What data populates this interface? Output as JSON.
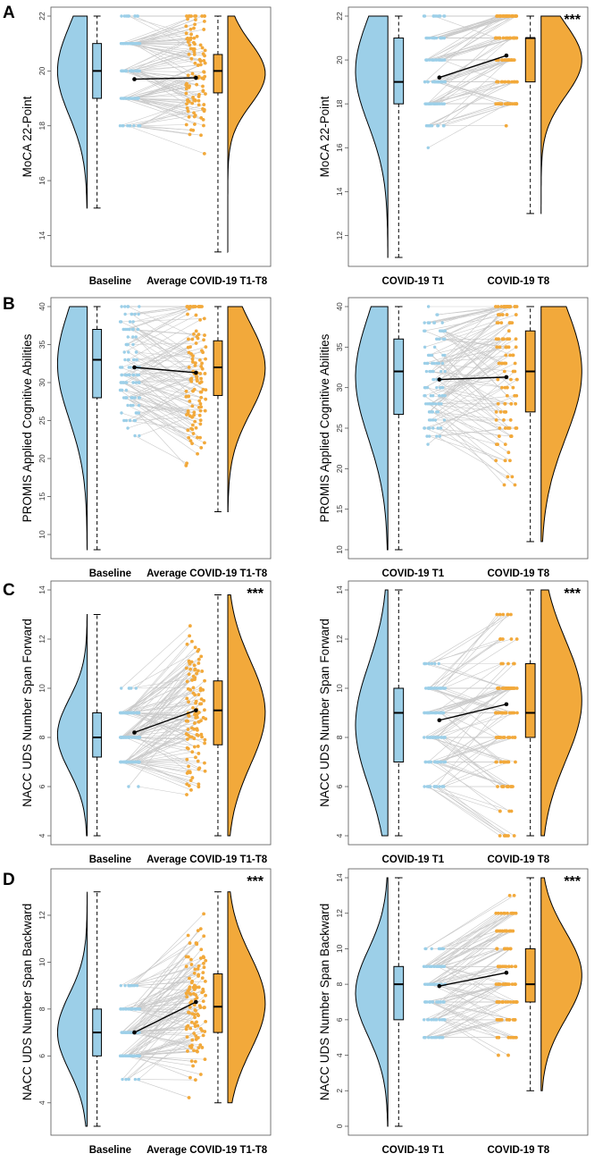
{
  "colors": {
    "baseline": "#9ccfe8",
    "followup": "#f2a93b",
    "line": "#c9c9c9",
    "mean": "#000000"
  },
  "panel_labels": [
    "A",
    "B",
    "C",
    "D"
  ],
  "chart_data": [
    {
      "id": "A-left",
      "row": 0,
      "col": 0,
      "type": "raincloud",
      "ylabel": "MoCA 22-Point",
      "groups": [
        "Baseline",
        "Average COVID-19 T1-T8"
      ],
      "yticks": [
        14,
        16,
        18,
        20,
        22
      ],
      "ylim": [
        13.2,
        22
      ],
      "box1": {
        "q1": 19,
        "median": 20,
        "q3": 21,
        "whisker_low": 15,
        "whisker_high": 22
      },
      "box2": {
        "q1": 19.2,
        "median": 20,
        "q3": 20.6,
        "whisker_low": 13.4,
        "whisker_high": 22
      },
      "mean1": 19.7,
      "mean2": 19.75,
      "sig": "",
      "discrete1": true,
      "discrete2": false
    },
    {
      "id": "A-right",
      "row": 0,
      "col": 1,
      "type": "raincloud",
      "ylabel": "MoCA 22-Point",
      "groups": [
        "COVID-19 T1",
        "COVID-19 T8"
      ],
      "yticks": [
        12,
        14,
        16,
        18,
        20,
        22
      ],
      "ylim": [
        11,
        22
      ],
      "box1": {
        "q1": 18,
        "median": 19,
        "q3": 21,
        "whisker_low": 11,
        "whisker_high": 22
      },
      "box2": {
        "q1": 19,
        "median": 21,
        "q3": 21,
        "whisker_low": 13,
        "whisker_high": 22
      },
      "mean1": 19.2,
      "mean2": 20.2,
      "sig": "***",
      "discrete1": true,
      "discrete2": true
    },
    {
      "id": "B-left",
      "row": 1,
      "col": 0,
      "type": "raincloud",
      "ylabel": "PROMIS Applied Cognitive Abilities",
      "groups": [
        "Baseline",
        "Average COVID-19 T1-T8"
      ],
      "yticks": [
        10,
        15,
        20,
        25,
        30,
        35,
        40
      ],
      "ylim": [
        8,
        40
      ],
      "box1": {
        "q1": 28,
        "median": 33,
        "q3": 37,
        "whisker_low": 8,
        "whisker_high": 40
      },
      "box2": {
        "q1": 28.3,
        "median": 32,
        "q3": 35.5,
        "whisker_low": 13,
        "whisker_high": 40
      },
      "mean1": 32,
      "mean2": 31.3,
      "sig": "",
      "discrete1": true,
      "discrete2": false
    },
    {
      "id": "B-right",
      "row": 1,
      "col": 1,
      "type": "raincloud",
      "ylabel": "PROMIS Applied Cognitive Abilities",
      "groups": [
        "COVID-19 T1",
        "COVID-19 T8"
      ],
      "yticks": [
        10,
        15,
        20,
        25,
        30,
        35,
        40
      ],
      "ylim": [
        10,
        40
      ],
      "box1": {
        "q1": 26.7,
        "median": 32,
        "q3": 36,
        "whisker_low": 10,
        "whisker_high": 40
      },
      "box2": {
        "q1": 27,
        "median": 32,
        "q3": 37,
        "whisker_low": 11,
        "whisker_high": 40
      },
      "mean1": 31,
      "mean2": 31.3,
      "sig": "",
      "discrete1": true,
      "discrete2": true
    },
    {
      "id": "C-left",
      "row": 2,
      "col": 0,
      "type": "raincloud",
      "ylabel": "NACC UDS Number Span Forward",
      "groups": [
        "Baseline",
        "Average COVID-19 T1-T8"
      ],
      "yticks": [
        4,
        6,
        8,
        10,
        12,
        14
      ],
      "ylim": [
        4,
        14
      ],
      "box1": {
        "q1": 7.2,
        "median": 8,
        "q3": 9,
        "whisker_low": 4,
        "whisker_high": 13
      },
      "box2": {
        "q1": 7.7,
        "median": 9.1,
        "q3": 10.3,
        "whisker_low": 4,
        "whisker_high": 13.8
      },
      "mean1": 8.2,
      "mean2": 9.1,
      "sig": "***",
      "discrete1": true,
      "discrete2": false
    },
    {
      "id": "C-right",
      "row": 2,
      "col": 1,
      "type": "raincloud",
      "ylabel": "NACC UDS Number Span Forward",
      "groups": [
        "COVID-19 T1",
        "COVID-19 T8"
      ],
      "yticks": [
        4,
        6,
        8,
        10,
        12,
        14
      ],
      "ylim": [
        4,
        14
      ],
      "box1": {
        "q1": 7,
        "median": 9,
        "q3": 10,
        "whisker_low": 4,
        "whisker_high": 14
      },
      "box2": {
        "q1": 8,
        "median": 9,
        "q3": 11,
        "whisker_low": 4,
        "whisker_high": 14
      },
      "mean1": 8.7,
      "mean2": 9.35,
      "sig": "***",
      "discrete1": true,
      "discrete2": true
    },
    {
      "id": "D-left",
      "row": 3,
      "col": 0,
      "type": "raincloud",
      "ylabel": "NACC UDS Number Span Backward",
      "groups": [
        "Baseline",
        "Average COVID-19 T1-T8"
      ],
      "yticks": [
        4,
        6,
        8,
        10,
        12
      ],
      "ylim": [
        3,
        13.6
      ],
      "box1": {
        "q1": 6,
        "median": 7,
        "q3": 8,
        "whisker_low": 3,
        "whisker_high": 13
      },
      "box2": {
        "q1": 7,
        "median": 8.1,
        "q3": 9.5,
        "whisker_low": 4,
        "whisker_high": 13
      },
      "mean1": 7,
      "mean2": 8.3,
      "sig": "***",
      "discrete1": true,
      "discrete2": false
    },
    {
      "id": "D-right",
      "row": 3,
      "col": 1,
      "type": "raincloud",
      "ylabel": "NACC UDS Number Span Backward",
      "groups": [
        "COVID-19 T1",
        "COVID-19 T8"
      ],
      "yticks": [
        0,
        2,
        4,
        6,
        8,
        10,
        12,
        14
      ],
      "ylim": [
        0,
        14
      ],
      "box1": {
        "q1": 6,
        "median": 8,
        "q3": 9,
        "whisker_low": 0,
        "whisker_high": 14
      },
      "box2": {
        "q1": 7,
        "median": 8,
        "q3": 10,
        "whisker_low": 2,
        "whisker_high": 14
      },
      "mean1": 7.9,
      "mean2": 8.65,
      "sig": "***",
      "discrete1": true,
      "discrete2": true
    }
  ]
}
